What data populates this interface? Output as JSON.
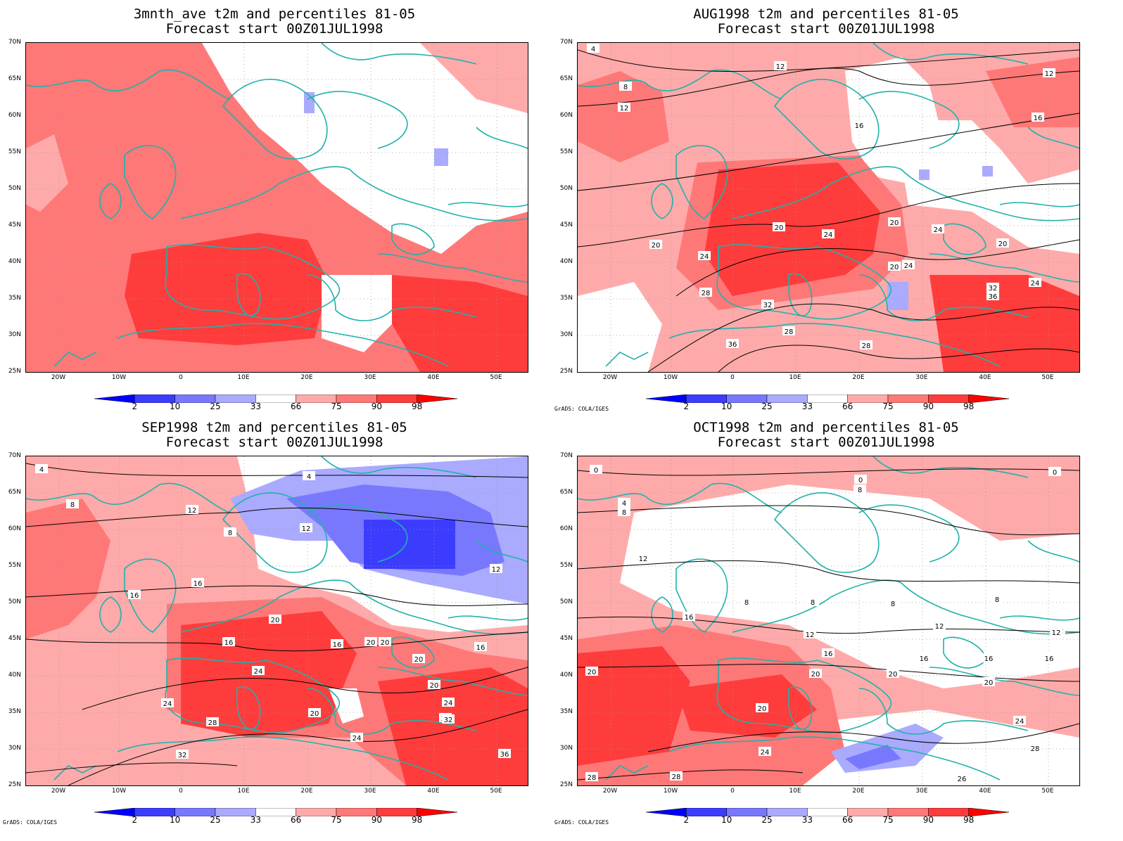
{
  "panels": [
    {
      "title_line1": "3mnth_ave t2m and percentiles 81-05",
      "title_line2": "Forecast start 00Z01JUL1998",
      "credit": "",
      "variant": "p1"
    },
    {
      "title_line1": "AUG1998 t2m and percentiles 81-05",
      "title_line2": "Forecast start 00Z01JUL1998",
      "credit": "GrADS: COLA/IGES",
      "variant": "p2"
    },
    {
      "title_line1": "SEP1998 t2m and percentiles 81-05",
      "title_line2": "Forecast start 00Z01JUL1998",
      "credit": "GrADS: COLA/IGES",
      "variant": "p3"
    },
    {
      "title_line1": "OCT1998 t2m and percentiles 81-05",
      "title_line2": "Forecast start 00Z01JUL1998",
      "credit": "GrADS: COLA/IGES",
      "variant": "p4"
    }
  ],
  "lat_labels": [
    "70N",
    "65N",
    "60N",
    "55N",
    "50N",
    "45N",
    "40N",
    "35N",
    "30N",
    "25N"
  ],
  "lon_labels": [
    "20W",
    "10W",
    "0",
    "10E",
    "20E",
    "30E",
    "40E",
    "50E"
  ],
  "colorbar": {
    "labels": [
      "2",
      "10",
      "25",
      "33",
      "66",
      "75",
      "90",
      "98"
    ],
    "colors": {
      "le2": "#0000ff",
      "2_10": "#3c3cff",
      "10_25": "#7878ff",
      "25_33": "#aaaaff",
      "33_66": "#ffffff",
      "66_75": "#ffaaaa",
      "75_90": "#ff7878",
      "90_98": "#ff3c3c",
      "ge98": "#ff0000"
    }
  },
  "coastline_color": "#20b2aa",
  "contour_labels": {
    "p2": [
      "4",
      "8",
      "12",
      "12",
      "12",
      "16",
      "16",
      "20",
      "20",
      "20",
      "20",
      "20",
      "24",
      "24",
      "24",
      "24",
      "24",
      "28",
      "28",
      "28",
      "32",
      "32",
      "36",
      "36"
    ],
    "p3": [
      "4",
      "4",
      "8",
      "8",
      "12",
      "12",
      "12",
      "16",
      "16",
      "16",
      "16",
      "16",
      "20",
      "20",
      "20",
      "20",
      "20",
      "20",
      "24",
      "24",
      "24",
      "24",
      "28",
      "28",
      "32",
      "32",
      "36"
    ],
    "p4": [
      "0",
      "0",
      "0",
      "4",
      "8",
      "8",
      "8",
      "8",
      "8",
      "8",
      "12",
      "12",
      "12",
      "12",
      "12",
      "16",
      "16",
      "16",
      "16",
      "16",
      "20",
      "20",
      "20",
      "20",
      "20",
      "24",
      "24",
      "26",
      "28",
      "28",
      "28"
    ]
  }
}
